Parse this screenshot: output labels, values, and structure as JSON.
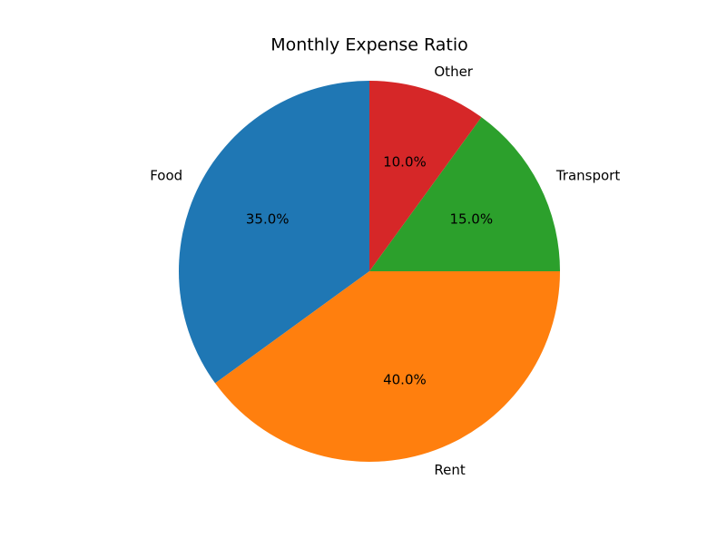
{
  "chart_data": {
    "type": "pie",
    "title": "Monthly Expense Ratio",
    "categories": [
      "Food",
      "Rent",
      "Transport",
      "Other"
    ],
    "values": [
      35,
      40,
      15,
      10
    ],
    "value_labels": [
      "35.0%",
      "40.0%",
      "15.0%",
      "10.0%"
    ],
    "colors": [
      "#1f77b4",
      "#ff7f0e",
      "#2ca02c",
      "#d62728"
    ]
  }
}
